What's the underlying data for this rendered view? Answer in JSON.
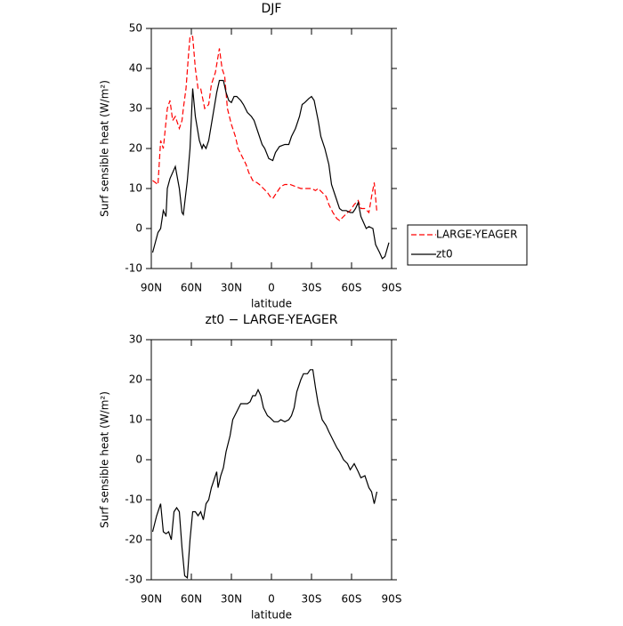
{
  "chart_data": [
    {
      "type": "line",
      "title": "DJF",
      "xlabel": "latitude",
      "ylabel": "Surf sensible heat (W/m²)",
      "xlim": [
        90,
        -90
      ],
      "xticks": [
        {
          "value": 90,
          "label": "90N"
        },
        {
          "value": 60,
          "label": "60N"
        },
        {
          "value": 30,
          "label": "30N"
        },
        0,
        {
          "value": -30,
          "label": "30S"
        },
        {
          "value": -60,
          "label": "60S"
        },
        {
          "value": -90,
          "label": "90S"
        }
      ],
      "ylim": [
        -10,
        50
      ],
      "yticks": [
        -10,
        0,
        10,
        20,
        30,
        40,
        50
      ],
      "legend": "right",
      "series": [
        {
          "name": "LARGE-YEAGER",
          "color": "#ff0000",
          "style": "dashed",
          "x": [
            89,
            85,
            83,
            81,
            78,
            76,
            74,
            72,
            69,
            67,
            66,
            64,
            62,
            61,
            59,
            57,
            55,
            53,
            50,
            47,
            45,
            42,
            39,
            37,
            35,
            33,
            30,
            27,
            25,
            22,
            19,
            17,
            14,
            11,
            9,
            6,
            3,
            1,
            -1,
            -4,
            -7,
            -10,
            -14,
            -18,
            -22,
            -26,
            -30,
            -33,
            -35,
            -38,
            -41,
            -43,
            -46,
            -49,
            -51,
            -54,
            -57,
            -59,
            -62,
            -65,
            -67,
            -70,
            -73,
            -75,
            -77,
            -79
          ],
          "values": [
            12,
            11,
            22,
            20,
            30,
            32,
            27,
            28,
            25,
            27,
            30,
            35,
            44,
            48,
            48,
            40,
            35,
            35,
            30,
            31,
            36,
            39,
            45,
            40,
            38,
            30,
            26,
            23,
            20,
            18,
            16,
            14,
            12,
            11.5,
            11,
            10,
            9,
            8,
            7.5,
            9,
            10.5,
            11,
            11,
            10.5,
            10,
            10,
            10,
            9.5,
            10,
            9,
            8,
            6,
            4,
            2.5,
            2,
            3,
            4,
            4.5,
            6,
            7,
            5,
            5,
            4,
            8,
            11.5,
            4
          ]
        },
        {
          "name": "zt0",
          "color": "#000000",
          "style": "solid",
          "x": [
            89,
            85,
            83,
            81,
            79,
            78,
            76,
            72,
            69,
            67,
            66,
            63,
            61,
            59,
            57,
            54,
            52,
            51,
            49,
            47,
            44,
            41,
            39,
            36,
            34,
            32,
            30,
            28,
            26,
            23,
            21,
            18,
            15,
            13,
            10,
            7,
            5,
            2,
            -1,
            -3,
            -6,
            -10,
            -13,
            -15,
            -18,
            -21,
            -23,
            -25,
            -28,
            -30,
            -32,
            -35,
            -37,
            -40,
            -43,
            -45,
            -48,
            -51,
            -53,
            -56,
            -59,
            -61,
            -63,
            -65,
            -67,
            -69,
            -71,
            -73,
            -76,
            -78,
            -81,
            -83,
            -85,
            -88
          ],
          "values": [
            -6,
            -1,
            0,
            4.5,
            3,
            10,
            12.5,
            15.5,
            10,
            4,
            3.5,
            12,
            20,
            35,
            28,
            22,
            20,
            21,
            20,
            22,
            28,
            34,
            37,
            37,
            34,
            32,
            31.5,
            33,
            33,
            32,
            31,
            29,
            28,
            27,
            24,
            21,
            20,
            17.5,
            17,
            19,
            20.5,
            21,
            21,
            23,
            25,
            28,
            31,
            31.5,
            32.5,
            33,
            32,
            27,
            23,
            20,
            16,
            11,
            8,
            5,
            4.5,
            4.5,
            4,
            4,
            5,
            6.5,
            3,
            1.5,
            0,
            0.5,
            0,
            -4,
            -6,
            -7.5,
            -7,
            -3.5
          ]
        }
      ]
    },
    {
      "type": "line",
      "title": "zt0 − LARGE-YEAGER",
      "xlabel": "latitude",
      "ylabel": "Surf sensible heat (W/m²)",
      "xlim": [
        90,
        -90
      ],
      "xticks": [
        {
          "value": 90,
          "label": "90N"
        },
        {
          "value": 60,
          "label": "60N"
        },
        {
          "value": 30,
          "label": "30N"
        },
        0,
        {
          "value": -30,
          "label": "30S"
        },
        {
          "value": -60,
          "label": "60S"
        },
        {
          "value": -90,
          "label": "90S"
        }
      ],
      "ylim": [
        -30,
        30
      ],
      "yticks": [
        -30,
        -20,
        -10,
        0,
        10,
        20,
        30
      ],
      "series": [
        {
          "color": "#000000",
          "style": "solid",
          "x": [
            89,
            86,
            83,
            81,
            79,
            77,
            75,
            73,
            71,
            69,
            67,
            65,
            63,
            61,
            59,
            57,
            55,
            53,
            51,
            49,
            47,
            45,
            43,
            41,
            40,
            38,
            36,
            34,
            31,
            29,
            26,
            23,
            21,
            18,
            16,
            14,
            12,
            10,
            8,
            6,
            3,
            1,
            -2,
            -5,
            -7,
            -10,
            -13,
            -15,
            -17,
            -19,
            -22,
            -24,
            -27,
            -29,
            -31,
            -33,
            -35,
            -38,
            -41,
            -43,
            -46,
            -49,
            -51,
            -54,
            -57,
            -59,
            -62,
            -65,
            -67,
            -70,
            -73,
            -75,
            -77,
            -79
          ],
          "values": [
            -18,
            -14,
            -11,
            -18,
            -18.5,
            -18,
            -20,
            -13,
            -12,
            -13,
            -22,
            -29,
            -29.5,
            -20,
            -13,
            -13,
            -14,
            -13,
            -15,
            -11,
            -10,
            -7,
            -5,
            -3,
            -7,
            -4,
            -2,
            2,
            6,
            10,
            12,
            14,
            14,
            14,
            14.5,
            16,
            16,
            17.5,
            16,
            13,
            11,
            10.5,
            9.5,
            9.5,
            10,
            9.5,
            10,
            11,
            13,
            17,
            20,
            21.5,
            21.5,
            22.5,
            22.5,
            18,
            14,
            10,
            8.5,
            7,
            5,
            3,
            2,
            0,
            -1,
            -2.5,
            -1,
            -3,
            -4.5,
            -4,
            -7,
            -8,
            -11,
            -8
          ]
        }
      ]
    }
  ]
}
